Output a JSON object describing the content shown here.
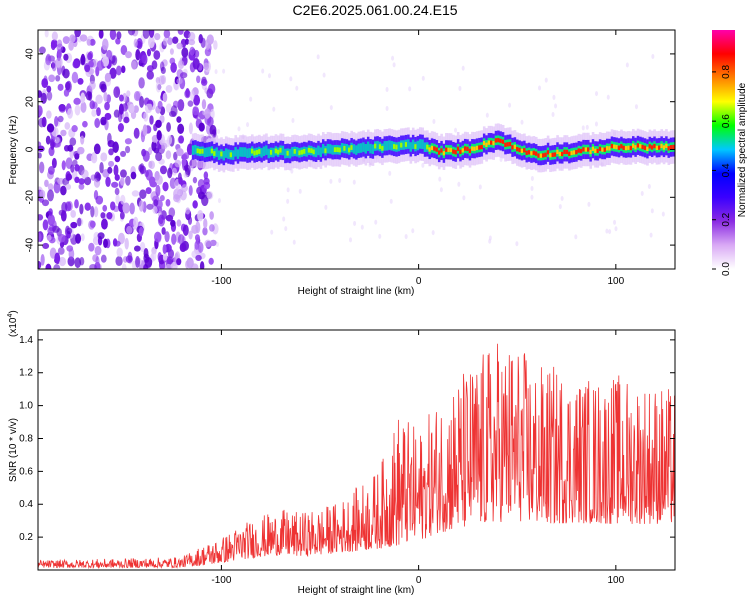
{
  "title": "C2E6.2025.061.00.24.E15",
  "chart_data": [
    {
      "type": "heatmap",
      "xlabel": "Height of straight line (km)",
      "ylabel": "Frequency (Hz)",
      "xlim": [
        -193,
        130
      ],
      "ylim": [
        -50,
        50
      ],
      "x_ticks": [
        -100,
        0,
        100
      ],
      "x_tick_labels": [
        "-100",
        "0",
        "100"
      ],
      "y_ticks": [
        -40,
        -20,
        0,
        20,
        40
      ],
      "y_tick_labels": [
        "-40",
        "-20",
        "0",
        "20",
        "40"
      ],
      "signal_band": [
        {
          "x": -115,
          "freq": 0
        },
        {
          "x": -100,
          "freq": -2
        },
        {
          "x": -80,
          "freq": -1
        },
        {
          "x": -60,
          "freq": -1
        },
        {
          "x": -40,
          "freq": 0
        },
        {
          "x": -20,
          "freq": 1
        },
        {
          "x": 0,
          "freq": 2
        },
        {
          "x": 10,
          "freq": -1
        },
        {
          "x": 25,
          "freq": 0
        },
        {
          "x": 40,
          "freq": 4
        },
        {
          "x": 50,
          "freq": 0
        },
        {
          "x": 60,
          "freq": -2
        },
        {
          "x": 80,
          "freq": -1
        },
        {
          "x": 100,
          "freq": 1
        },
        {
          "x": 130,
          "freq": 1
        }
      ],
      "colorbar": {
        "label": "Normalized spectral amplitude",
        "ticks": [
          0.0,
          0.2,
          0.4,
          0.6,
          0.8
        ],
        "tick_labels": [
          "0.0",
          "0.2",
          "0.4",
          "0.6",
          "0.8"
        ],
        "range": [
          0,
          0.97
        ],
        "colors": [
          "#ffffff",
          "#d9a9f5",
          "#8a2be2",
          "#3a00ff",
          "#0000ff",
          "#00c8ff",
          "#00ff00",
          "#ffff00",
          "#ff8000",
          "#ff0000",
          "#ff00aa"
        ]
      }
    },
    {
      "type": "line",
      "xlabel": "Height of straight line (km)",
      "ylabel": "SNR (10 * v/v)",
      "y_multiplier": "(x10",
      "y_multiplier_exp": "4",
      "y_multiplier_close": ")",
      "xlim": [
        -193,
        130
      ],
      "ylim": [
        0,
        14600
      ],
      "x_ticks": [
        -100,
        0,
        100
      ],
      "x_tick_labels": [
        "-100",
        "0",
        "100"
      ],
      "y_ticks": [
        2000,
        4000,
        6000,
        8000,
        10000,
        12000,
        14000
      ],
      "y_tick_labels": [
        "0.2",
        "0.4",
        "0.6",
        "0.8",
        "1.0",
        "1.2",
        "1.4"
      ],
      "color": "#ee3333",
      "x": [
        -193,
        -150,
        -120,
        -110,
        -100,
        -90,
        -80,
        -70,
        -60,
        -50,
        -40,
        -30,
        -20,
        -10,
        0,
        10,
        20,
        30,
        40,
        50,
        60,
        70,
        80,
        90,
        100,
        110,
        120,
        130
      ],
      "y": [
        400,
        400,
        450,
        800,
        1200,
        1800,
        2300,
        2600,
        2400,
        2600,
        3000,
        3300,
        3700,
        4200,
        5000,
        6500,
        7000,
        7500,
        8300,
        8500,
        8000,
        8000,
        8200,
        8000,
        8000,
        8000,
        8000,
        8000
      ],
      "y_peak": [
        600,
        700,
        800,
        1500,
        2000,
        2800,
        3300,
        3700,
        3500,
        3800,
        4200,
        5200,
        6200,
        9800,
        8500,
        10500,
        12000,
        13000,
        14200,
        14000,
        12500,
        12500,
        12000,
        11800,
        12000,
        11800,
        11500,
        11000
      ]
    }
  ]
}
